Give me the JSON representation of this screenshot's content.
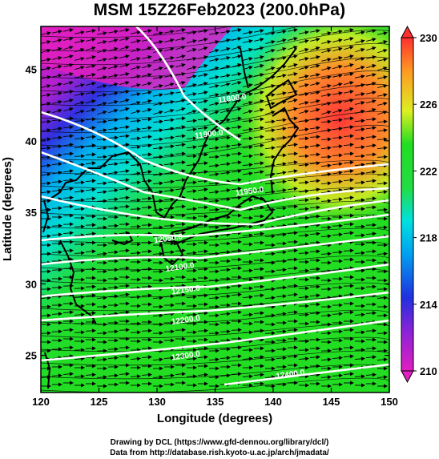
{
  "title": "MSM 15Z26Feb2023 (200.0hPa)",
  "chart_data": {
    "type": "map",
    "xlabel": "Longitude (degrees)",
    "ylabel": "Latitude (degrees)",
    "xlim": [
      120,
      150
    ],
    "ylim": [
      22.4,
      48
    ],
    "xticks": [
      120,
      125,
      130,
      135,
      140,
      145,
      150
    ],
    "yticks": [
      25,
      30,
      35,
      40,
      45
    ],
    "colorbar": {
      "range": [
        210,
        230
      ],
      "ticks": [
        210,
        214,
        218,
        222,
        226,
        230
      ],
      "colors": [
        "#e020c0",
        "#2030e0",
        "#00e0e0",
        "#22dd22",
        "#ddee22",
        "#ff3030"
      ]
    },
    "contours": [
      {
        "label": "11800.0",
        "lon": 136.5,
        "lat": 42.8
      },
      {
        "label": "11900.0",
        "lon": 134.5,
        "lat": 40.3
      },
      {
        "label": "11950.0",
        "lon": 138.0,
        "lat": 36.3
      },
      {
        "label": "12050.0",
        "lon": 131.0,
        "lat": 33.0
      },
      {
        "label": "12100.0",
        "lon": 132.0,
        "lat": 31.0
      },
      {
        "label": "12150.0",
        "lon": 132.5,
        "lat": 29.4
      },
      {
        "label": "12200.0",
        "lon": 132.5,
        "lat": 27.3
      },
      {
        "label": "12300.0",
        "lon": 132.5,
        "lat": 24.8
      },
      {
        "label": "12400.0",
        "lon": 141.5,
        "lat": 23.5
      }
    ],
    "vectors": "wind direction arrows (westerly flow)"
  },
  "credits": {
    "line1": "Drawing by DCL (https://www.gfd-dennou.org/library/dcl/)",
    "line2": "Data from http://database.rish.kyoto-u.ac.jp/arch/jmadata/"
  }
}
